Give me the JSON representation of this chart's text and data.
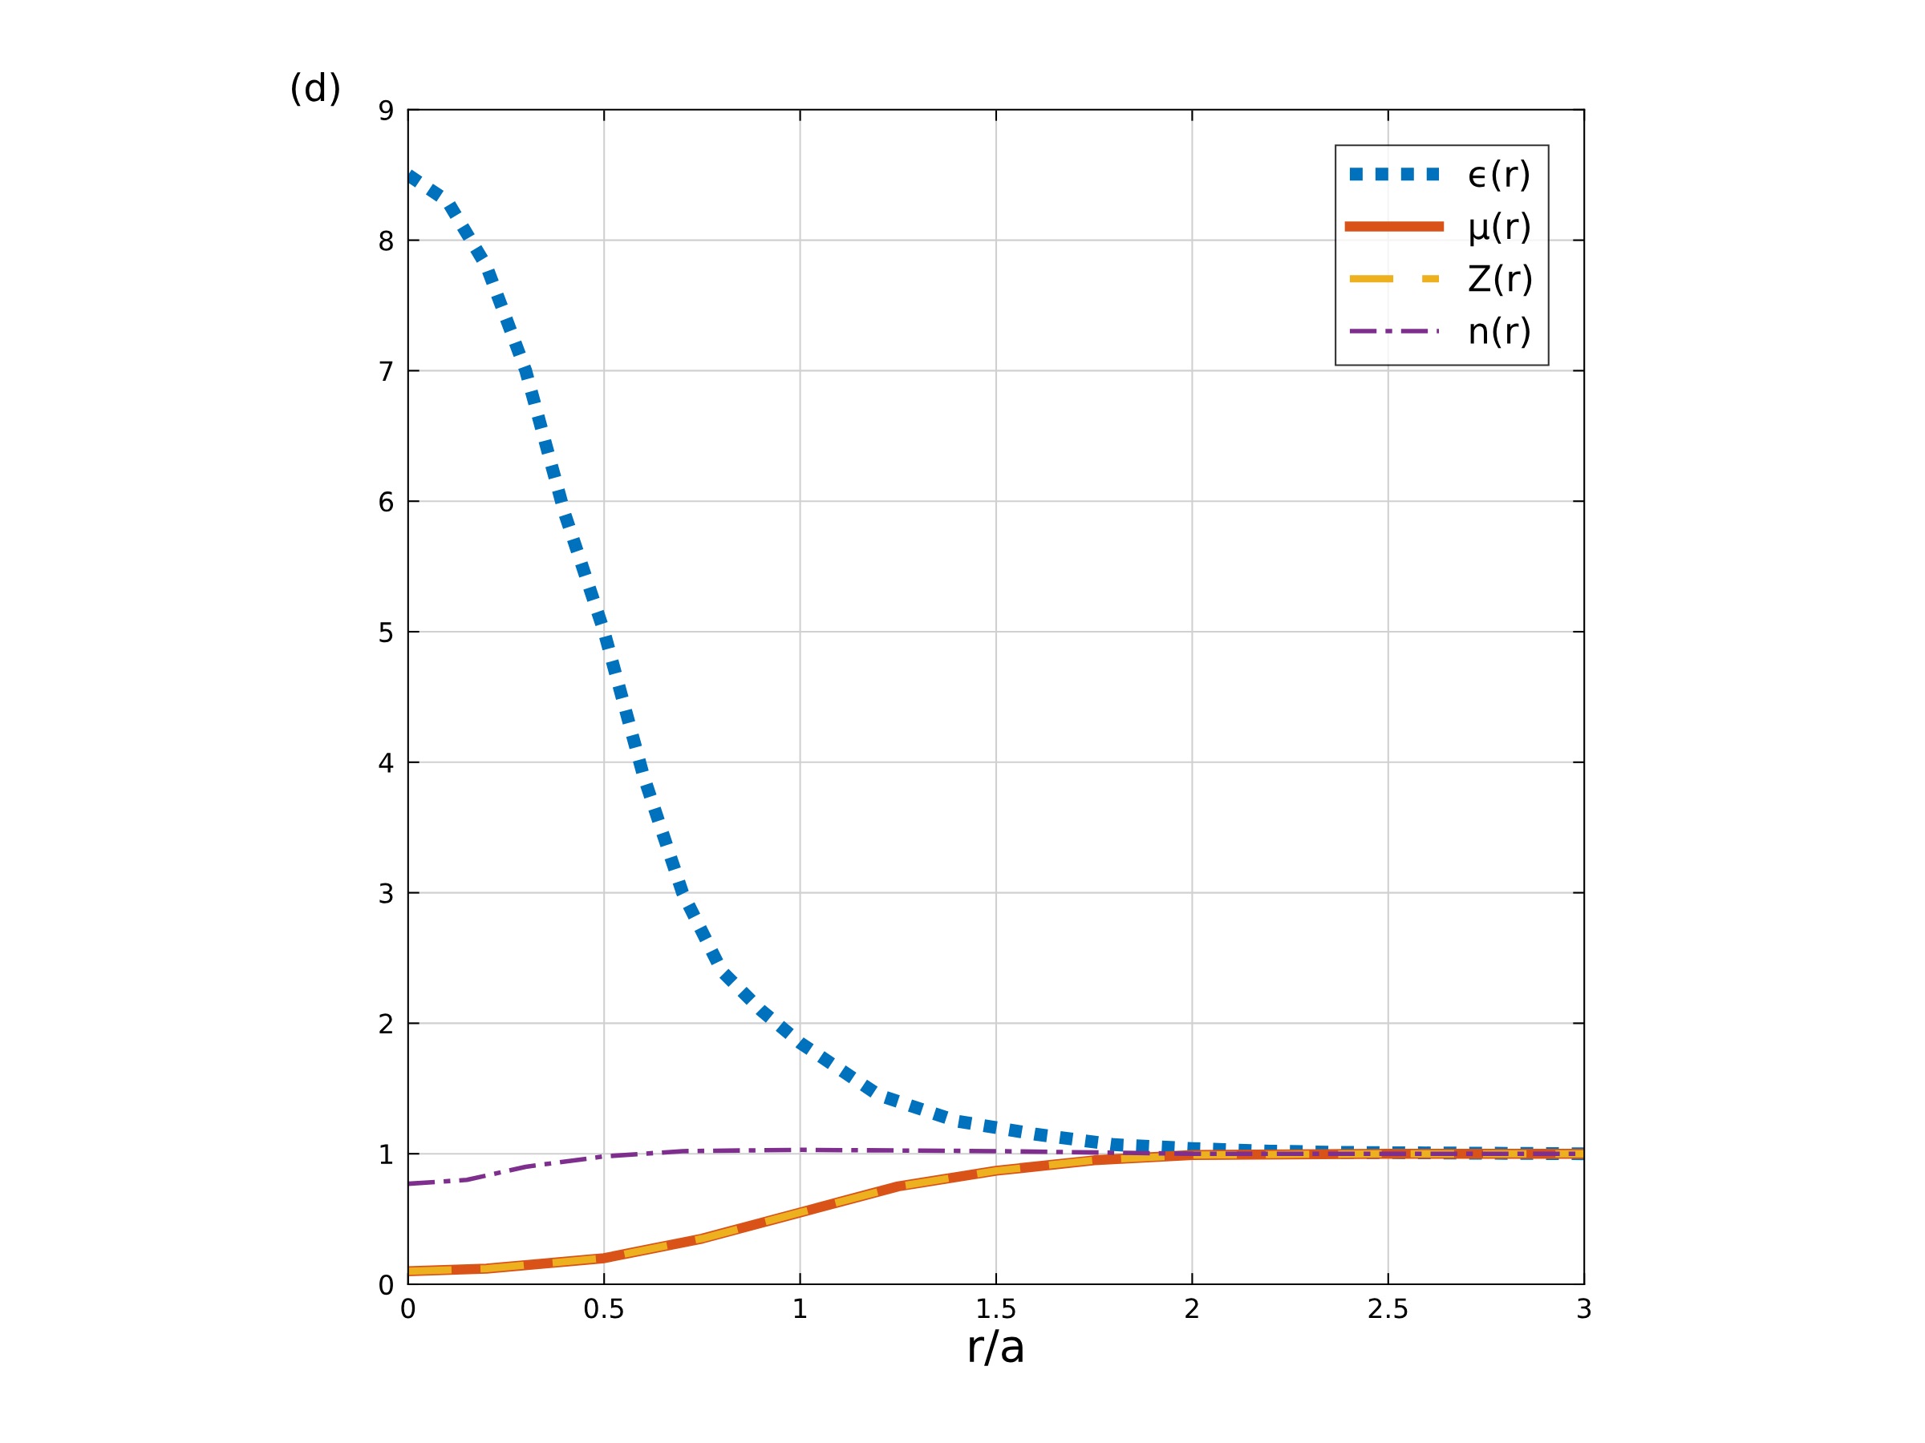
{
  "chart_data": {
    "type": "line",
    "title": "(d)",
    "xlabel": "r/a",
    "xlim": [
      0,
      3
    ],
    "xticks": [
      0,
      0.5,
      1,
      1.5,
      2,
      2.5,
      3
    ],
    "ylim": [
      0,
      9
    ],
    "yticks": [
      0,
      1,
      2,
      3,
      4,
      5,
      6,
      7,
      8,
      9
    ],
    "grid": true,
    "legend": "top right",
    "series": [
      {
        "name": "ϵ(r)",
        "color": "#0072bd",
        "line_style": "dotted",
        "x": [
          0,
          0.1,
          0.2,
          0.3,
          0.4,
          0.5,
          0.6,
          0.7,
          0.8,
          0.9,
          1.0,
          1.2,
          1.4,
          1.6,
          1.8,
          2.0,
          2.2,
          2.4,
          3.0
        ],
        "values": [
          8.5,
          8.3,
          7.8,
          7.0,
          5.9,
          5.0,
          3.9,
          3.0,
          2.4,
          2.1,
          1.85,
          1.45,
          1.25,
          1.15,
          1.07,
          1.04,
          1.02,
          1.01,
          1.0
        ]
      },
      {
        "name": "μ(r)",
        "color": "#d95319",
        "line_style": "solid",
        "x": [
          0,
          0.2,
          0.5,
          0.75,
          1.0,
          1.25,
          1.5,
          1.75,
          2.0,
          2.5,
          3.0
        ],
        "values": [
          0.1,
          0.12,
          0.2,
          0.35,
          0.55,
          0.75,
          0.87,
          0.95,
          0.99,
          1.0,
          1.0
        ]
      },
      {
        "name": "Z(r)",
        "color": "#edb120",
        "line_style": "dashed",
        "x": [
          0,
          0.2,
          0.5,
          0.75,
          1.0,
          1.25,
          1.5,
          1.75,
          2.0,
          2.5,
          3.0
        ],
        "values": [
          0.1,
          0.12,
          0.2,
          0.35,
          0.55,
          0.75,
          0.87,
          0.95,
          0.99,
          1.0,
          1.0
        ]
      },
      {
        "name": "n(r)",
        "color": "#7e2f8e",
        "line_style": "dashdot",
        "x": [
          0,
          0.15,
          0.3,
          0.5,
          0.7,
          1.0,
          1.5,
          2.0,
          3.0
        ],
        "values": [
          0.77,
          0.8,
          0.9,
          0.98,
          1.02,
          1.03,
          1.02,
          1.0,
          1.0
        ]
      }
    ]
  }
}
